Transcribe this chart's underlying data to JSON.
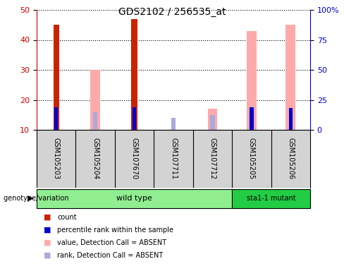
{
  "title": "GDS2102 / 256535_at",
  "samples": [
    "GSM105203",
    "GSM105204",
    "GSM107670",
    "GSM107711",
    "GSM107712",
    "GSM105205",
    "GSM105206"
  ],
  "count_values": [
    45,
    null,
    47,
    null,
    null,
    null,
    null
  ],
  "rank_values": [
    19,
    null,
    19,
    null,
    null,
    19,
    18
  ],
  "absent_value_values": [
    null,
    30,
    null,
    null,
    17,
    43,
    45
  ],
  "absent_rank_values": [
    null,
    16,
    null,
    14,
    15,
    null,
    null
  ],
  "ylim_left": [
    10,
    50
  ],
  "ylim_right": [
    0,
    100
  ],
  "yticks_left": [
    10,
    20,
    30,
    40,
    50
  ],
  "yticks_right": [
    0,
    25,
    50,
    75,
    100
  ],
  "ytick_labels_right": [
    "0",
    "25",
    "50",
    "75",
    "100%"
  ],
  "left_axis_color": "#cc0000",
  "right_axis_color": "#0000cc",
  "count_color": "#cc2200",
  "rank_color": "#0000cc",
  "absent_value_color": "#ffaaaa",
  "absent_rank_color": "#aaaadd",
  "bg_color": "#ffffff",
  "plot_bg": "#ffffff",
  "grid_color": "black",
  "sample_bg": "#d3d3d3",
  "wt_color": "#90ee90",
  "mutant_color": "#22cc44",
  "legend_items": [
    {
      "label": "count",
      "color": "#cc2200"
    },
    {
      "label": "percentile rank within the sample",
      "color": "#0000cc"
    },
    {
      "label": "value, Detection Call = ABSENT",
      "color": "#ffaaaa"
    },
    {
      "label": "rank, Detection Call = ABSENT",
      "color": "#aaaadd"
    }
  ]
}
